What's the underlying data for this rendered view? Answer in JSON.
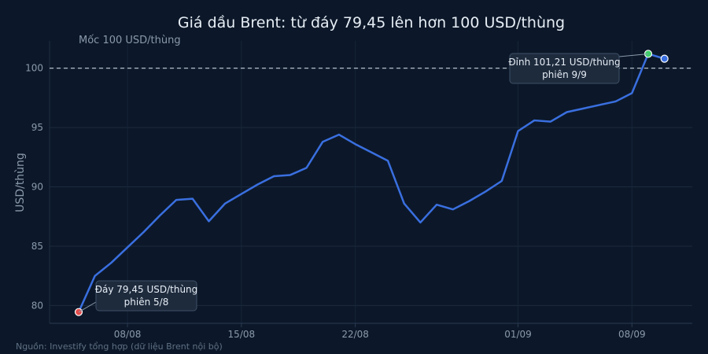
{
  "chart_data": {
    "type": "line",
    "title": "Giá dầu Brent: từ đáy 79,45 lên hơn 100 USD/thùng",
    "ylabel": "USD/thùng",
    "xlabel": "",
    "ylim": [
      78.5,
      102.3
    ],
    "yticks": [
      80,
      85,
      90,
      95,
      100
    ],
    "xticks": [
      {
        "label": "08/08",
        "day": 8
      },
      {
        "label": "15/08",
        "day": 15
      },
      {
        "label": "22/08",
        "day": 22
      },
      {
        "label": "01/09",
        "day": 32
      },
      {
        "label": "08/09",
        "day": 39
      }
    ],
    "x_range": [
      5,
      43
    ],
    "grid": true,
    "series": [
      {
        "color": "#3a6fe0",
        "x": [
          5,
          6,
          7,
          8,
          9,
          10,
          11,
          12,
          13,
          14,
          15,
          16,
          17,
          18,
          19,
          20,
          21,
          22,
          23,
          24,
          25,
          26,
          27,
          28,
          29,
          30,
          31,
          32,
          33,
          34,
          35,
          36,
          37,
          38,
          39,
          40
        ],
        "values": [
          79.45,
          82.5,
          83.6,
          84.9,
          86.2,
          87.6,
          88.9,
          89.0,
          87.1,
          88.6,
          89.4,
          90.2,
          90.9,
          91.0,
          91.6,
          93.8,
          94.4,
          93.6,
          92.9,
          92.2,
          88.6,
          87.0,
          88.5,
          88.1,
          88.8,
          89.6,
          90.5,
          94.7,
          95.6,
          95.5,
          96.3,
          96.6,
          96.9,
          97.2,
          97.9,
          101.21
        ]
      }
    ],
    "extra_point": {
      "x": 41,
      "value": 100.8
    },
    "reference_line": {
      "value": 100,
      "label": "Mốc 100 USD/thùng",
      "color": "#c7d0dc"
    },
    "annotations": [
      {
        "line1": "Đáy 79,45 USD/thùng",
        "line2": "phiên 5/8",
        "x": 5,
        "value": 79.45,
        "marker_color": "#e34b4b"
      },
      {
        "line1": "Đỉnh 101,21 USD/thùng",
        "line2": "phiên 9/9",
        "x": 40,
        "value": 101.21,
        "marker_color": "#3ecf6a"
      }
    ],
    "last_marker_color": "#3a6fe0",
    "source": "Nguồn: Investify tổng hợp (dữ liệu Brent nội bộ)"
  }
}
